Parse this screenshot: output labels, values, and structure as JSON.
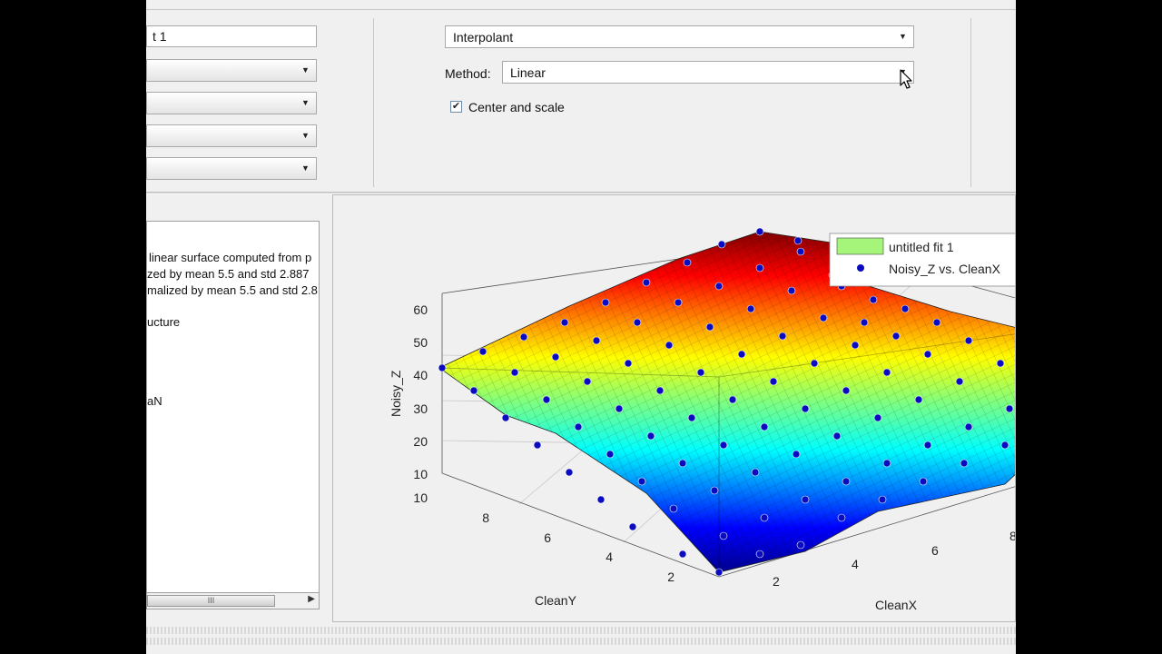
{
  "fit": {
    "name_fragment": "t 1",
    "type": "Interpolant",
    "method_label": "Method:",
    "method_value": "Linear",
    "center_scale_label": "Center and scale",
    "center_scale_checked": true
  },
  "results": {
    "lines": [
      "linear surface computed from p",
      "zed by mean 5.5 and std 2.887",
      "malized by mean 5.5 and std 2.8",
      "ucture",
      "aN"
    ],
    "scroll_thumb": "III"
  },
  "plot": {
    "z_label": "Noisy_Z",
    "x_label": "CleanX",
    "y_label": "CleanY",
    "z_ticks": [
      "60",
      "50",
      "40",
      "30",
      "20",
      "10"
    ],
    "y_ticks": [
      "10",
      "8",
      "6",
      "4",
      "2"
    ],
    "x_ticks": [
      "2",
      "4",
      "6",
      "8"
    ],
    "legend": [
      "untitled fit 1",
      "Noisy_Z vs. CleanX"
    ],
    "colors": {
      "legend_fit": "#a4f57a",
      "points": "#0b0bbf"
    }
  }
}
